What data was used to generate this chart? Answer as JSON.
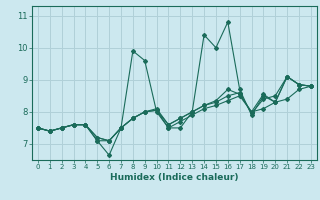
{
  "xlabel": "Humidex (Indice chaleur)",
  "bg_color": "#cce8ef",
  "grid_color": "#b0d0d8",
  "line_color": "#1a6b5a",
  "xlim": [
    -0.5,
    23.5
  ],
  "ylim": [
    6.5,
    11.3
  ],
  "yticks": [
    7,
    8,
    9,
    10,
    11
  ],
  "xticks": [
    0,
    1,
    2,
    3,
    4,
    5,
    6,
    7,
    8,
    9,
    10,
    11,
    12,
    13,
    14,
    15,
    16,
    17,
    18,
    19,
    20,
    21,
    22,
    23
  ],
  "lines": [
    [
      7.5,
      7.4,
      7.5,
      7.6,
      7.6,
      7.1,
      6.65,
      7.5,
      9.9,
      9.6,
      8.0,
      7.5,
      7.5,
      8.0,
      10.4,
      10.0,
      10.8,
      8.7,
      7.9,
      8.5,
      8.3,
      9.1,
      8.85,
      8.8
    ],
    [
      7.5,
      7.4,
      7.5,
      7.6,
      7.6,
      7.1,
      7.1,
      7.5,
      7.8,
      8.0,
      8.05,
      7.5,
      7.7,
      7.9,
      8.1,
      8.2,
      8.35,
      8.5,
      8.0,
      8.1,
      8.3,
      8.4,
      8.7,
      8.8
    ],
    [
      7.5,
      7.4,
      7.5,
      7.6,
      7.6,
      7.2,
      7.1,
      7.5,
      7.8,
      8.0,
      8.05,
      7.6,
      7.8,
      8.0,
      8.2,
      8.3,
      8.5,
      8.6,
      7.95,
      8.4,
      8.5,
      9.1,
      8.85,
      8.8
    ],
    [
      7.5,
      7.4,
      7.5,
      7.6,
      7.6,
      7.2,
      7.1,
      7.5,
      7.8,
      8.0,
      8.1,
      7.6,
      7.8,
      8.0,
      8.2,
      8.35,
      8.7,
      8.55,
      8.0,
      8.55,
      8.3,
      9.1,
      8.85,
      8.8
    ]
  ]
}
